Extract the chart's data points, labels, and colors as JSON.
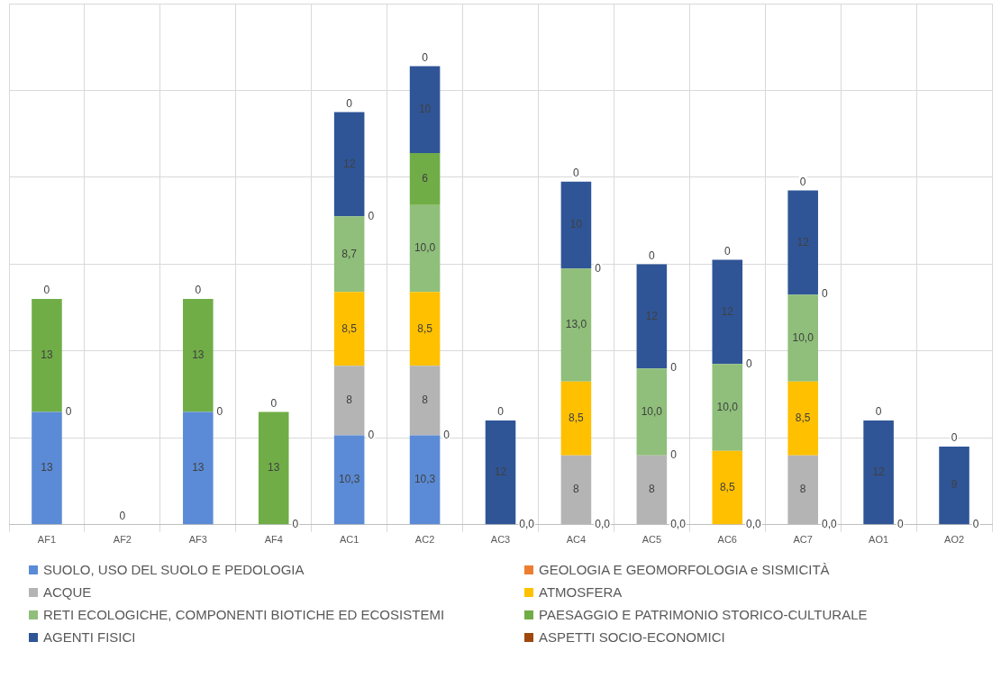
{
  "chart_data": {
    "type": "bar",
    "stacked": true,
    "categories": [
      "AF1",
      "AF2",
      "AF3",
      "AF4",
      "AC1",
      "AC2",
      "AC3",
      "AC4",
      "AC5",
      "AC6",
      "AC7",
      "AO1",
      "AO2"
    ],
    "ylim": [
      0,
      60
    ],
    "yticks": [
      {
        "value": 0,
        "label": null
      },
      {
        "value": 10,
        "label": null
      },
      {
        "value": 20,
        "label": null
      },
      {
        "value": 30,
        "label": null
      },
      {
        "value": 40,
        "label": null
      },
      {
        "value": 50,
        "label": null
      },
      {
        "value": 60,
        "label": null
      }
    ],
    "tick_labels": "x",
    "grid": true,
    "legend": "bottom",
    "series": [
      {
        "name": "SUOLO, USO DEL SUOLO E PEDOLOGIA",
        "color": "#5b8bd6",
        "values": [
          13,
          null,
          13,
          null,
          10.3,
          10.3,
          null,
          null,
          null,
          null,
          null,
          null,
          null
        ],
        "value_labels": [
          "13",
          null,
          "13",
          null,
          "10,3",
          "10,3",
          null,
          null,
          null,
          null,
          null,
          null,
          null
        ]
      },
      {
        "name": "GEOLOGIA E GEOMORFOLOGIA e SISMICITÀ",
        "color": "#ed7d31",
        "values": [
          null,
          null,
          null,
          null,
          null,
          null,
          null,
          null,
          null,
          null,
          null,
          null,
          null
        ]
      },
      {
        "name": "ACQUE",
        "color": "#b4b4b4",
        "values": [
          null,
          null,
          null,
          null,
          8,
          8,
          null,
          8,
          8,
          null,
          8,
          null,
          null
        ],
        "value_labels": [
          null,
          null,
          null,
          null,
          "8",
          "8",
          null,
          "8",
          "8",
          null,
          "8",
          null,
          null
        ]
      },
      {
        "name": "ATMOSFERA",
        "color": "#ffc000",
        "values": [
          null,
          null,
          null,
          null,
          8.5,
          8.5,
          null,
          8.5,
          null,
          8.5,
          8.5,
          null,
          null
        ],
        "value_labels": [
          null,
          null,
          null,
          null,
          "8,5",
          "8,5",
          null,
          "8,5",
          null,
          "8,5",
          "8,5",
          null,
          null
        ]
      },
      {
        "name": "RETI ECOLOGICHE, COMPONENTI BIOTICHE ED ECOSISTEMI",
        "color": "#8fbf7a",
        "values": [
          null,
          null,
          null,
          null,
          8.7,
          10.0,
          null,
          13.0,
          10.0,
          10.0,
          10.0,
          null,
          null
        ],
        "value_labels": [
          null,
          null,
          null,
          null,
          "8,7",
          "10,0",
          null,
          "13,0",
          "10,0",
          "10,0",
          "10,0",
          null,
          null
        ]
      },
      {
        "name": "PAESAGGIO E PATRIMONIO STORICO-CULTURALE",
        "color": "#70ad47",
        "values": [
          13,
          null,
          13,
          13,
          null,
          6,
          null,
          null,
          null,
          null,
          null,
          null,
          null
        ],
        "value_labels": [
          "13",
          null,
          "13",
          "13",
          null,
          "6",
          null,
          null,
          null,
          null,
          null,
          null,
          null
        ]
      },
      {
        "name": "AGENTI FISICI",
        "color": "#2f5597",
        "values": [
          null,
          null,
          null,
          null,
          12,
          10,
          12,
          10,
          12,
          12,
          12,
          12,
          9
        ],
        "value_labels": [
          null,
          null,
          null,
          null,
          "12",
          "10",
          "12",
          "10",
          "12",
          "12",
          "12",
          "12",
          "9"
        ]
      },
      {
        "name": "ASPETTI SOCIO-ECONOMICI",
        "color": "#9e480e",
        "values": [
          0,
          0,
          0,
          0,
          0,
          0,
          0,
          0,
          0,
          0,
          0,
          0,
          0
        ],
        "value_labels": [
          "0",
          "0",
          "0",
          "0",
          "0",
          "0",
          "0",
          "0",
          "0",
          "0",
          "0",
          "0",
          "0"
        ]
      }
    ],
    "annotations": [
      {
        "text": "0",
        "x": "AF1",
        "y": 13
      },
      {
        "text": "0",
        "x": "AF3",
        "y": 13
      },
      {
        "text": "0",
        "x": "AF4",
        "y": 0
      },
      {
        "text": "0",
        "x": "AC1",
        "y": 10.3
      },
      {
        "text": "0",
        "x": "AC1",
        "y": 35.5
      },
      {
        "text": "0",
        "x": "AC2",
        "y": 10.3
      },
      {
        "text": "0,0",
        "x": "AC3",
        "y": 0
      },
      {
        "text": "0,0",
        "x": "AC4",
        "y": 0
      },
      {
        "text": "0",
        "x": "AC4",
        "y": 29.5
      },
      {
        "text": "0,0",
        "x": "AC5",
        "y": 0
      },
      {
        "text": "0",
        "x": "AC5",
        "y": 8
      },
      {
        "text": "0",
        "x": "AC5",
        "y": 18
      },
      {
        "text": "0,0",
        "x": "AC6",
        "y": 0
      },
      {
        "text": "0",
        "x": "AC6",
        "y": 18.5
      },
      {
        "text": "0,0",
        "x": "AC7",
        "y": 0
      },
      {
        "text": "0",
        "x": "AC7",
        "y": 26.5
      },
      {
        "text": "0",
        "x": "AO1",
        "y": 0
      },
      {
        "text": "0",
        "x": "AO2",
        "y": 0
      }
    ]
  }
}
